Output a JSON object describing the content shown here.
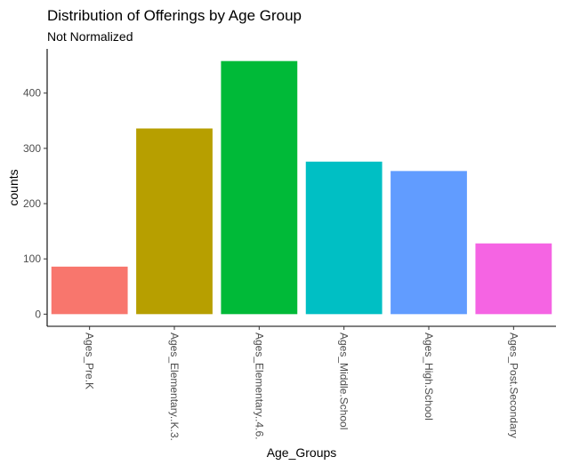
{
  "chart_data": {
    "type": "bar",
    "title": "Distribution of Offerings by Age Group",
    "subtitle": "Not Normalized",
    "xlabel": "Age_Groups",
    "ylabel": "counts",
    "categories": [
      "Ages_Pre.K",
      "Ages_Elementary..K.3.",
      "Ages_Elementary..4.6.",
      "Ages_Middle.School",
      "Ages_High.School",
      "Ages_Post.Secondary"
    ],
    "values": [
      86,
      336,
      458,
      276,
      259,
      128
    ],
    "colors": [
      "#F8766D",
      "#B79F00",
      "#00BA38",
      "#00BFC4",
      "#619CFF",
      "#F564E3"
    ],
    "yticks": [
      0,
      100,
      200,
      300,
      400
    ],
    "ylim": [
      -22,
      480
    ],
    "grid": false,
    "legend": "none"
  }
}
